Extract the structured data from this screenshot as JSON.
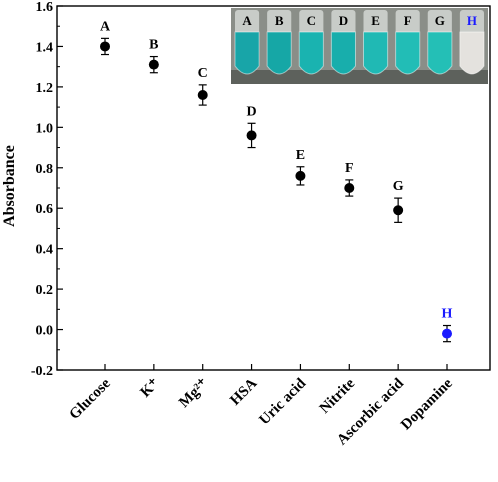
{
  "chart_data": {
    "type": "scatter",
    "title": "",
    "xlabel": "",
    "ylabel": "Absorbance",
    "ylim": [
      -0.2,
      1.6
    ],
    "yticks": [
      "-0.2",
      "0.0",
      "0.2",
      "0.4",
      "0.6",
      "0.8",
      "1.0",
      "1.2",
      "1.4",
      "1.6"
    ],
    "categories": [
      "Glucose",
      "K⁺",
      "Mg²⁺",
      "HSA",
      "Uric acid",
      "Nitrite",
      "Ascorbic acid",
      "Dopamine"
    ],
    "point_labels": [
      "A",
      "B",
      "C",
      "D",
      "E",
      "F",
      "G",
      "H"
    ],
    "values": [
      1.4,
      1.31,
      1.16,
      0.96,
      0.76,
      0.7,
      0.59,
      -0.02
    ],
    "errors": [
      0.04,
      0.04,
      0.05,
      0.06,
      0.045,
      0.04,
      0.06,
      0.04
    ],
    "point_colors": [
      "#000000",
      "#000000",
      "#000000",
      "#000000",
      "#000000",
      "#000000",
      "#000000",
      "#1a1aff"
    ],
    "grid": false,
    "legend": "none"
  },
  "inset": {
    "tube_labels": [
      "A",
      "B",
      "C",
      "D",
      "E",
      "F",
      "G",
      "H"
    ],
    "tube_colors": [
      "#18a5a8",
      "#16a7a6",
      "#1ab3b0",
      "#18aeac",
      "#20b9b4",
      "#22bdb6",
      "#24bfb6",
      "#e4e2de"
    ],
    "label_colors": [
      "#000000",
      "#000000",
      "#000000",
      "#000000",
      "#000000",
      "#000000",
      "#000000",
      "#1a1aff"
    ]
  }
}
